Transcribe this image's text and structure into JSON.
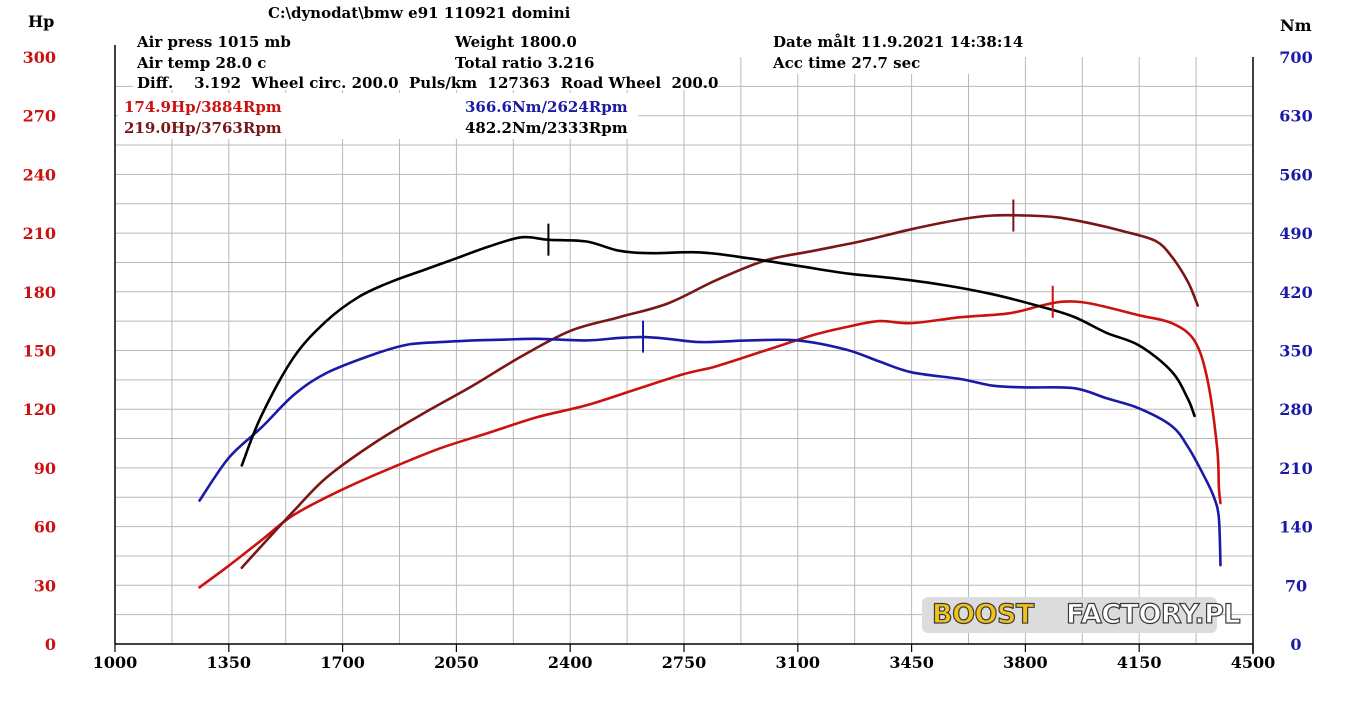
{
  "header": {
    "file": "C:\\dynodat\\bmw e91 110921 domini",
    "air_press": "Air press  1015 mb",
    "air_temp": "Air temp  28.0 c",
    "diff": "Diff.    3.192  Wheel circ. 200.0  Puls/km  127363  Road Wheel  200.0",
    "weight": "Weight   1800.0",
    "total_ratio": "Total ratio 3.216",
    "date": "Date målt 11.9.2021 14:38:14",
    "acc_time": "Acc time   27.7 sec"
  },
  "peaks": {
    "hp_red": "174.9Hp/3884Rpm",
    "hp_dark": "219.0Hp/3763Rpm",
    "nm_blue": "366.6Nm/2624Rpm",
    "nm_black": "482.2Nm/2333Rpm"
  },
  "logo": {
    "part1": "BOOST",
    "part2": "FACTORY.PL"
  },
  "colors": {
    "red": "#cc1111",
    "dark_red": "#7a1616",
    "blue": "#1a1aa6",
    "black": "#000000"
  },
  "chart_data": {
    "type": "line",
    "xlabel": "",
    "left_axis_label": "Hp",
    "right_axis_label": "Nm",
    "xlim": [
      1000,
      4500
    ],
    "ylim_left": [
      0,
      300
    ],
    "ylim_right": [
      0,
      700
    ],
    "x_ticks": [
      1000,
      1350,
      1700,
      2050,
      2400,
      2750,
      3100,
      3450,
      3800,
      4150,
      4500
    ],
    "y_ticks_left": [
      0,
      30,
      60,
      90,
      120,
      150,
      180,
      210,
      240,
      270,
      300
    ],
    "y_ticks_right": [
      0,
      70,
      140,
      210,
      280,
      350,
      420,
      490,
      560,
      630,
      700
    ],
    "grid": true,
    "series": [
      {
        "name": "",
        "color": "#cc1111",
        "axis": "left",
        "marker": [
          3884,
          174.9
        ],
        "x": [
          1260,
          1350,
          1450,
          1550,
          1700,
          1850,
          2000,
          2150,
          2300,
          2450,
          2600,
          2750,
          2850,
          3000,
          3150,
          3250,
          3350,
          3450,
          3600,
          3750,
          3850,
          3920,
          4000,
          4150,
          4250,
          4320,
          4360,
          4390,
          4395,
          4400
        ],
        "y": [
          29,
          40,
          53,
          66,
          79,
          90,
          100,
          108,
          116,
          122,
          130,
          138,
          142,
          150,
          158,
          162,
          165,
          164,
          167,
          169,
          173,
          175,
          174,
          168,
          164,
          155,
          135,
          100,
          80,
          72
        ]
      },
      {
        "name": "",
        "color": "#7a1616",
        "axis": "left",
        "marker": [
          3763,
          219.0
        ],
        "x": [
          1390,
          1450,
          1550,
          1650,
          1800,
          1950,
          2100,
          2250,
          2400,
          2550,
          2700,
          2850,
          3000,
          3150,
          3300,
          3450,
          3600,
          3700,
          3800,
          3900,
          4000,
          4100,
          4200,
          4250,
          4300,
          4330
        ],
        "y": [
          39,
          50,
          68,
          85,
          103,
          118,
          132,
          147,
          160,
          167,
          174,
          186,
          196,
          201,
          206,
          212,
          217,
          219,
          219,
          218,
          215,
          211,
          206,
          198,
          185,
          173
        ]
      },
      {
        "name": "",
        "color": "#1a1aa6",
        "axis": "right",
        "marker": [
          2624,
          366.6
        ],
        "x": [
          1260,
          1350,
          1450,
          1550,
          1650,
          1800,
          1900,
          2000,
          2100,
          2200,
          2300,
          2450,
          2550,
          2624,
          2700,
          2800,
          2950,
          3100,
          3250,
          3350,
          3450,
          3600,
          3700,
          3800,
          3950,
          4050,
          4150,
          4250,
          4300,
          4350,
          4380,
          4395,
          4400
        ],
        "y": [
          171,
          222,
          258,
          297,
          323,
          346,
          357,
          360,
          362,
          363,
          364,
          362,
          365,
          366,
          364,
          360,
          362,
          362,
          351,
          337,
          324,
          316,
          308,
          306,
          305,
          293,
          281,
          260,
          235,
          200,
          175,
          150,
          94
        ]
      },
      {
        "name": "",
        "color": "#000000",
        "axis": "right",
        "marker": [
          2333,
          482.2
        ],
        "x": [
          1390,
          1450,
          1550,
          1650,
          1750,
          1850,
          1950,
          2050,
          2150,
          2250,
          2333,
          2450,
          2550,
          2650,
          2800,
          2950,
          3100,
          3250,
          3400,
          3550,
          3700,
          3850,
          3950,
          4050,
          4150,
          4250,
          4300,
          4320
        ],
        "y": [
          213,
          272,
          342,
          385,
          414,
          432,
          446,
          460,
          474,
          485,
          482,
          480,
          469,
          466,
          467,
          460,
          451,
          442,
          436,
          428,
          417,
          402,
          390,
          371,
          356,
          325,
          292,
          272
        ]
      }
    ]
  }
}
